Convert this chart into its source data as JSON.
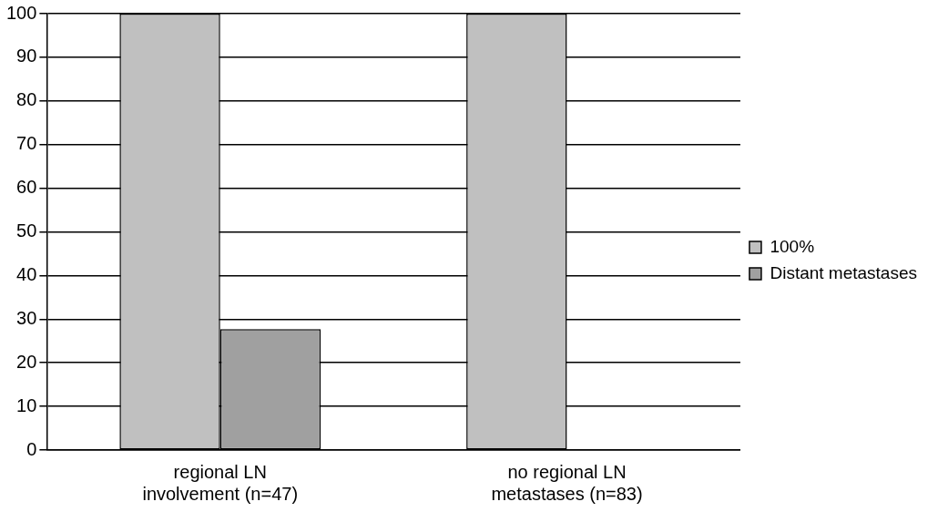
{
  "chart_data": {
    "type": "bar",
    "categories": [
      "regional LN involvement (n=47)",
      "no regional LN metastases (n=83)"
    ],
    "series": [
      {
        "name": "100%",
        "color": "#c0c0c0",
        "values": [
          100,
          100
        ]
      },
      {
        "name": "Distant metastases",
        "color": "#a0a0a0",
        "values": [
          27.7,
          0
        ]
      }
    ],
    "ylim": [
      0,
      100
    ],
    "yticks": [
      0,
      10,
      20,
      30,
      40,
      50,
      60,
      70,
      80,
      90,
      100
    ],
    "grid": "y",
    "legend": "right"
  }
}
